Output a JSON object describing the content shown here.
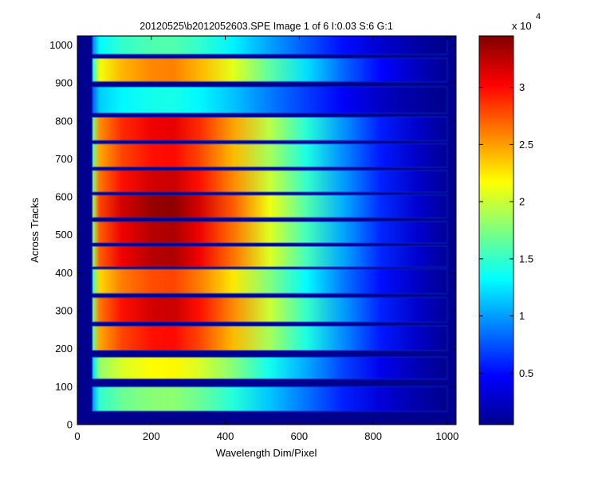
{
  "chart_data": [
    {
      "type": "heatmap",
      "title": "20120525\\b2012052603.SPE  Image 1 of 6  I:0.03  S:6  G:1",
      "xlabel": "Wavelength Dim/Pixel",
      "ylabel": "Across Tracks",
      "xlim": [
        0,
        1024
      ],
      "ylim": [
        0,
        1024
      ],
      "x_ticks": [
        0,
        200,
        400,
        600,
        800,
        1000
      ],
      "y_ticks": [
        0,
        100,
        200,
        300,
        400,
        500,
        600,
        700,
        800,
        900,
        1000
      ],
      "colormap": "jet",
      "grid": false,
      "tracks": [
        {
          "y0": 35,
          "y1": 100,
          "peak": 18000
        },
        {
          "y0": 120,
          "y1": 178,
          "peak": 22000
        },
        {
          "y0": 195,
          "y1": 260,
          "peak": 30000
        },
        {
          "y0": 270,
          "y1": 335,
          "peak": 32000
        },
        {
          "y0": 345,
          "y1": 410,
          "peak": 28000
        },
        {
          "y0": 415,
          "y1": 470,
          "peak": 33000
        },
        {
          "y0": 478,
          "y1": 535,
          "peak": 33000
        },
        {
          "y0": 545,
          "y1": 605,
          "peak": 34000
        },
        {
          "y0": 612,
          "y1": 670,
          "peak": 32000
        },
        {
          "y0": 678,
          "y1": 740,
          "peak": 30000
        },
        {
          "y0": 748,
          "y1": 810,
          "peak": 31000
        },
        {
          "y0": 820,
          "y1": 890,
          "peak": 14000
        },
        {
          "y0": 903,
          "y1": 965,
          "peak": 26000
        },
        {
          "y0": 975,
          "y1": 1024,
          "peak": 16000
        }
      ]
    },
    {
      "type": "colorbar",
      "exponent": "x 10",
      "exponent_power": "4",
      "range": [
        500,
        34500
      ],
      "tick_values": [
        0.5,
        1,
        1.5,
        2,
        2.5,
        3
      ],
      "tick_labels": [
        "0.5",
        "1",
        "1.5",
        "2",
        "2.5",
        "3"
      ],
      "colormap": "jet"
    }
  ]
}
